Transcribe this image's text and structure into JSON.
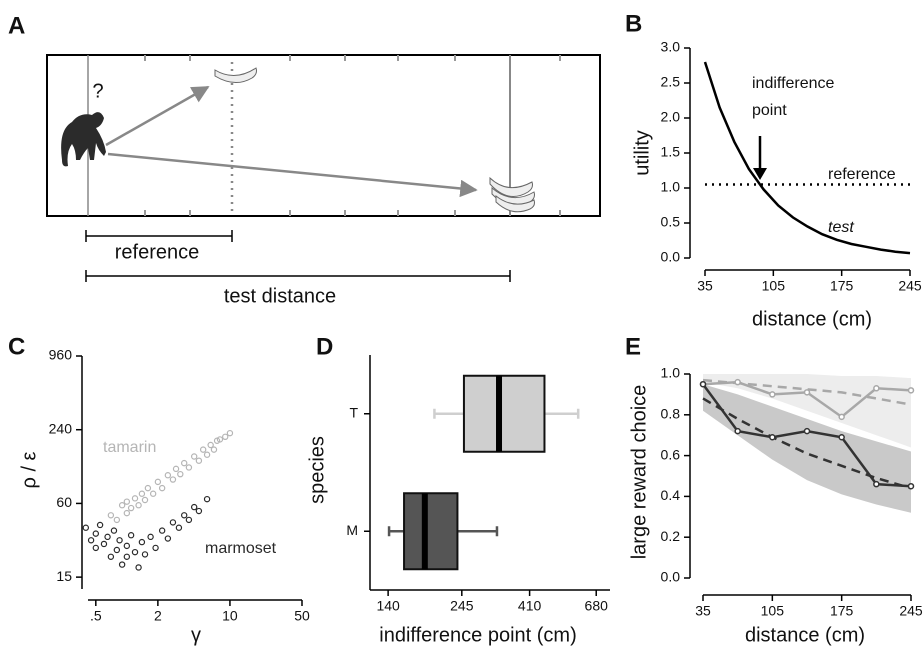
{
  "diagram": {
    "panel": "A",
    "question": "?",
    "reference": "reference",
    "test_distance": "test distance"
  },
  "chart_data": [
    {
      "type": "line",
      "panel": "B",
      "xlabel": "distance (cm)",
      "ylabel": "utility",
      "annotation": [
        "indifference",
        "point"
      ],
      "xlim": [
        35,
        245
      ],
      "xticks": [
        35,
        105,
        175,
        245
      ],
      "ylim": [
        0,
        3
      ],
      "yticks": [
        {
          "value": 0,
          "label": "0.0"
        },
        0.5,
        {
          "value": 1,
          "label": "1.0"
        },
        1.5,
        {
          "value": 2,
          "label": "2.0"
        },
        2.5,
        {
          "value": 3,
          "label": "3.0"
        }
      ],
      "series": [
        {
          "name": "test",
          "color": "#000000",
          "style": "solid",
          "x": [
            35,
            50,
            65,
            80,
            95,
            110,
            125,
            140,
            155,
            170,
            185,
            200,
            215,
            230,
            245
          ],
          "values": [
            2.8,
            2.15,
            1.66,
            1.27,
            0.98,
            0.75,
            0.58,
            0.45,
            0.34,
            0.26,
            0.2,
            0.16,
            0.12,
            0.09,
            0.07
          ]
        },
        {
          "name": "reference",
          "color": "#000000",
          "style": "dotted",
          "x": [
            35,
            245
          ],
          "values": [
            1.05,
            1.05
          ]
        }
      ]
    },
    {
      "type": "scatter",
      "panel": "C",
      "xlabel": "γ",
      "ylabel": "ρ / ε",
      "xlog": true,
      "ylog": true,
      "xlim": [
        0.42,
        50
      ],
      "xticks": [
        {
          "value": 0.5,
          "label": ".5"
        },
        2,
        10,
        50
      ],
      "ylim": [
        12,
        960
      ],
      "yticks": [
        15,
        60,
        240,
        960
      ],
      "series": [
        {
          "name": "tamarin",
          "color": "#b5b5b5",
          "x": [
            0.7,
            0.8,
            0.9,
            1.0,
            1.0,
            1.1,
            1.2,
            1.3,
            1.4,
            1.5,
            1.6,
            1.8,
            2.0,
            2.2,
            2.5,
            2.8,
            3.0,
            3.3,
            3.6,
            4.0,
            4.5,
            5.0,
            5.5,
            6.0,
            6.5,
            7.0,
            7.5,
            8.0,
            9.0,
            10.0
          ],
          "values": [
            48,
            44,
            58,
            50,
            62,
            55,
            66,
            58,
            72,
            64,
            80,
            72,
            90,
            80,
            102,
            94,
            115,
            104,
            128,
            118,
            145,
            134,
            165,
            150,
            180,
            165,
            195,
            200,
            210,
            225
          ]
        },
        {
          "name": "marmoset",
          "color": "#2a2a2a",
          "x": [
            0.4,
            0.45,
            0.5,
            0.5,
            0.55,
            0.6,
            0.65,
            0.7,
            0.75,
            0.8,
            0.85,
            0.9,
            1.0,
            1.0,
            1.1,
            1.2,
            1.3,
            1.4,
            1.5,
            1.7,
            1.9,
            2.2,
            2.5,
            2.8,
            3.2,
            3.6,
            4.0,
            4.5,
            5.0,
            6.0
          ],
          "values": [
            38,
            30,
            34,
            26,
            40,
            28,
            32,
            22,
            36,
            25,
            30,
            19,
            27,
            22,
            33,
            24,
            18,
            29,
            23,
            32,
            26,
            36,
            31,
            42,
            38,
            48,
            44,
            56,
            52,
            65
          ]
        }
      ]
    },
    {
      "type": "box",
      "panel": "D",
      "xlabel": "indifference point (cm)",
      "ylabel": "species",
      "xlog": true,
      "xlim": [
        122,
        755
      ],
      "xticks": [
        140,
        245,
        410,
        680
      ],
      "categories": [
        "M",
        "T"
      ],
      "boxes": [
        {
          "color": "#555555",
          "whislo": 141,
          "q1": 158,
          "med": 185,
          "q3": 237,
          "whishi": 320
        },
        {
          "color": "#cfcfcf",
          "whislo": 199,
          "q1": 249,
          "med": 325,
          "q3": 459,
          "whishi": 593
        }
      ]
    },
    {
      "type": "line",
      "panel": "E",
      "xlabel": "distance (cm)",
      "ylabel": "large reward choice",
      "xlim": [
        35,
        245
      ],
      "xticks": [
        35,
        105,
        175,
        245
      ],
      "ylim": [
        0,
        1
      ],
      "yticks": [
        {
          "value": 0,
          "label": "0.0"
        },
        0.2,
        0.4,
        0.6,
        0.8,
        {
          "value": 1,
          "label": "1.0"
        }
      ],
      "bands": [
        {
          "color": "#ededed",
          "x": [
            35,
            70,
            105,
            140,
            175,
            210,
            245
          ],
          "lower": [
            0.96,
            0.93,
            0.88,
            0.82,
            0.76,
            0.7,
            0.64
          ],
          "upper": [
            1.0,
            1.0,
            1.0,
            1.0,
            0.99,
            0.99,
            0.98
          ]
        },
        {
          "color": "#c9c9c9",
          "x": [
            35,
            70,
            105,
            140,
            175,
            210,
            245
          ],
          "lower": [
            0.82,
            0.7,
            0.58,
            0.48,
            0.41,
            0.36,
            0.32
          ],
          "upper": [
            0.95,
            0.9,
            0.84,
            0.78,
            0.72,
            0.67,
            0.62
          ]
        }
      ],
      "series": [
        {
          "color": "#a8a8a8",
          "style": "dashed",
          "x": [
            35,
            105,
            175,
            245
          ],
          "values": [
            0.97,
            0.94,
            0.91,
            0.85
          ]
        },
        {
          "color": "#a8a8a8",
          "style": "solid",
          "markers": true,
          "x": [
            35,
            70,
            105,
            140,
            175,
            210,
            245
          ],
          "values": [
            0.95,
            0.96,
            0.9,
            0.91,
            0.79,
            0.93,
            0.92
          ]
        },
        {
          "color": "#333333",
          "style": "dashed",
          "x": [
            35,
            70,
            105,
            140,
            175,
            210,
            245
          ],
          "values": [
            0.88,
            0.78,
            0.69,
            0.61,
            0.55,
            0.49,
            0.44
          ]
        },
        {
          "color": "#333333",
          "style": "solid",
          "markers": true,
          "x": [
            35,
            70,
            105,
            140,
            175,
            210,
            245
          ],
          "values": [
            0.95,
            0.72,
            0.69,
            0.72,
            0.69,
            0.46,
            0.45
          ]
        }
      ]
    }
  ]
}
